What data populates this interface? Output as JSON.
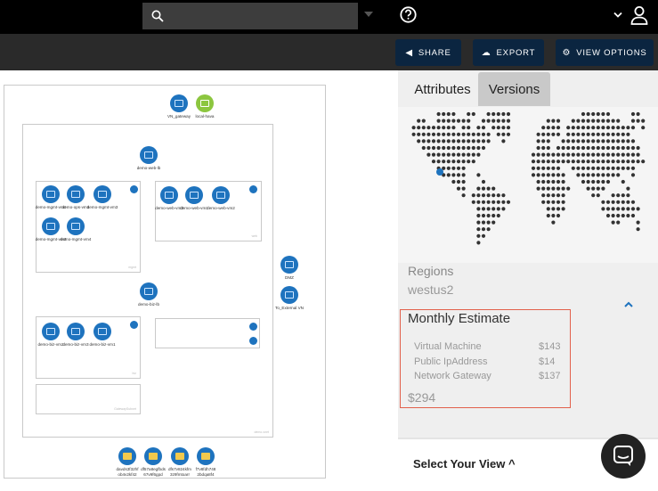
{
  "topbar": {
    "search_placeholder": ""
  },
  "toolbar": {
    "share_label": "SHARE",
    "export_label": "EXPORT",
    "view_options_label": "VIEW OPTIONS"
  },
  "diagram": {
    "vn_gateway": "VN_gateway",
    "local_hava": "local-hava",
    "web_lb": "demo-web-lb",
    "biz_lb": "demo-biz-lb",
    "dmz": "DMZ",
    "to_external": "To_External VN",
    "mgmt_nodes": [
      "demo-mgmt-vm1",
      "demo-ops-vm1",
      "demo-mgmt-vm3",
      "demo-mgmt-vm2",
      "demo-mgmt-vm4"
    ],
    "web_nodes": [
      "demo-web-vm3",
      "demo-web-vm1",
      "demo-web-vm2"
    ],
    "biz_nodes": [
      "demo-biz-vm2",
      "demo-biz-vm3",
      "demo-biz-vm1"
    ],
    "disks": [
      "davds3f32hf ob4v2kf42",
      "df57a8egfbds 67v9f6gpd",
      "dfs7v824kfm 3z9fmtoarr",
      "f7v8fdh748 2bdqa8f4"
    ]
  },
  "panel": {
    "tabs": [
      "Attributes",
      "Versions"
    ],
    "active_tab": "Versions",
    "regions_heading": "Regions",
    "regions_value": "westus2",
    "estimate": {
      "title": "Monthly Estimate",
      "rows": [
        {
          "label": "Virtual Machine",
          "value": "$143"
        },
        {
          "label": "Public IpAddress",
          "value": "$14"
        },
        {
          "label": "Network Gateway",
          "value": "$137"
        }
      ],
      "total": "$294"
    },
    "select_view": "Select Your View ^"
  },
  "colors": {
    "accent": "#1e73be",
    "toolbar_button": "#0b2540",
    "estimate_border": "#e2604b"
  }
}
